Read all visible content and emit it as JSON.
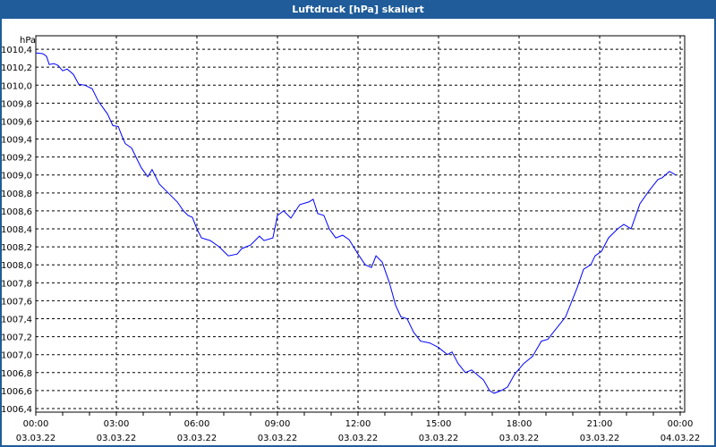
{
  "window": {
    "title": "Luftdruck [hPa] skaliert"
  },
  "chart_data": {
    "type": "line",
    "title": "Luftdruck [hPa] skaliert",
    "ylabel": "hPa",
    "xlabel": "",
    "ylim": [
      1006.36,
      1010.55
    ],
    "xlim_hours": [
      0,
      24
    ],
    "grid": true,
    "y_ticks": [
      {
        "value": 1010.4,
        "label": "1010,4"
      },
      {
        "value": 1010.2,
        "label": "1010,2"
      },
      {
        "value": 1010.0,
        "label": "1010,0"
      },
      {
        "value": 1009.8,
        "label": "1009,8"
      },
      {
        "value": 1009.6,
        "label": "1009,6"
      },
      {
        "value": 1009.4,
        "label": "1009,4"
      },
      {
        "value": 1009.2,
        "label": "1009,2"
      },
      {
        "value": 1009.0,
        "label": "1009,0"
      },
      {
        "value": 1008.8,
        "label": "1008,8"
      },
      {
        "value": 1008.6,
        "label": "1008,6"
      },
      {
        "value": 1008.4,
        "label": "1008,4"
      },
      {
        "value": 1008.2,
        "label": "1008,2"
      },
      {
        "value": 1008.0,
        "label": "1008,0"
      },
      {
        "value": 1007.8,
        "label": "1007,8"
      },
      {
        "value": 1007.6,
        "label": "1007,6"
      },
      {
        "value": 1007.4,
        "label": "1007,4"
      },
      {
        "value": 1007.2,
        "label": "1007,2"
      },
      {
        "value": 1007.0,
        "label": "1007,0"
      },
      {
        "value": 1006.8,
        "label": "1006,8"
      },
      {
        "value": 1006.6,
        "label": "1006,6"
      },
      {
        "value": 1006.4,
        "label": "1006,4"
      }
    ],
    "x_ticks": [
      {
        "hour": 0,
        "time": "00:00",
        "date": "03.03.22"
      },
      {
        "hour": 3,
        "time": "03:00",
        "date": "03.03.22"
      },
      {
        "hour": 6,
        "time": "06:00",
        "date": "03.03.22"
      },
      {
        "hour": 9,
        "time": "09:00",
        "date": "03.03.22"
      },
      {
        "hour": 12,
        "time": "12:00",
        "date": "03.03.22"
      },
      {
        "hour": 15,
        "time": "15:00",
        "date": "03.03.22"
      },
      {
        "hour": 18,
        "time": "18:00",
        "date": "03.03.22"
      },
      {
        "hour": 21,
        "time": "21:00",
        "date": "03.03.22"
      },
      {
        "hour": 24,
        "time": "00:00",
        "date": "04.03.22"
      }
    ],
    "series": [
      {
        "name": "Luftdruck",
        "color": "#0000ff",
        "x": [
          0,
          0.27,
          0.4,
          0.5,
          0.67,
          0.83,
          1.0,
          1.17,
          1.4,
          1.6,
          1.83,
          2.1,
          2.33,
          2.67,
          2.87,
          3.07,
          3.2,
          3.33,
          3.57,
          3.73,
          3.93,
          4.17,
          4.33,
          4.6,
          5.0,
          5.27,
          5.5,
          5.67,
          5.83,
          6.0,
          6.17,
          6.5,
          6.83,
          7.17,
          7.5,
          7.67,
          8.0,
          8.33,
          8.5,
          8.83,
          9.0,
          9.23,
          9.5,
          9.83,
          10.17,
          10.33,
          10.5,
          10.73,
          10.93,
          11.17,
          11.43,
          11.67,
          12.0,
          12.27,
          12.5,
          12.67,
          12.9,
          13.17,
          13.4,
          13.6,
          13.83,
          14.07,
          14.33,
          14.67,
          15.0,
          15.33,
          15.5,
          15.73,
          16.0,
          16.23,
          16.5,
          16.67,
          16.9,
          17.07,
          17.33,
          17.57,
          17.83,
          18.17,
          18.5,
          18.83,
          19.07,
          19.33,
          19.73,
          20.17,
          20.4,
          20.67,
          20.83,
          21.07,
          21.33,
          21.67,
          21.9,
          22.17,
          22.5,
          22.83,
          23.17,
          23.33,
          23.6,
          23.83
        ],
        "values": [
          1010.36,
          1010.35,
          1010.32,
          1010.23,
          1010.24,
          1010.22,
          1010.16,
          1010.18,
          1010.12,
          1010.01,
          1010.0,
          1009.96,
          1009.82,
          1009.68,
          1009.55,
          1009.54,
          1009.44,
          1009.35,
          1009.3,
          1009.2,
          1009.08,
          1008.98,
          1009.06,
          1008.9,
          1008.78,
          1008.7,
          1008.6,
          1008.55,
          1008.53,
          1008.4,
          1008.3,
          1008.27,
          1008.2,
          1008.1,
          1008.12,
          1008.18,
          1008.22,
          1008.32,
          1008.27,
          1008.3,
          1008.55,
          1008.6,
          1008.52,
          1008.67,
          1008.7,
          1008.73,
          1008.57,
          1008.55,
          1008.4,
          1008.3,
          1008.33,
          1008.28,
          1008.12,
          1008.0,
          1007.97,
          1008.1,
          1008.03,
          1007.8,
          1007.55,
          1007.42,
          1007.4,
          1007.25,
          1007.15,
          1007.13,
          1007.08,
          1007.0,
          1007.03,
          1006.9,
          1006.8,
          1006.83,
          1006.76,
          1006.72,
          1006.6,
          1006.57,
          1006.6,
          1006.64,
          1006.78,
          1006.9,
          1006.98,
          1007.15,
          1007.17,
          1007.27,
          1007.42,
          1007.75,
          1007.95,
          1008.0,
          1008.1,
          1008.15,
          1008.3,
          1008.4,
          1008.45,
          1008.4,
          1008.68,
          1008.82,
          1008.95,
          1008.97,
          1009.04,
          1009.0
        ]
      }
    ]
  }
}
